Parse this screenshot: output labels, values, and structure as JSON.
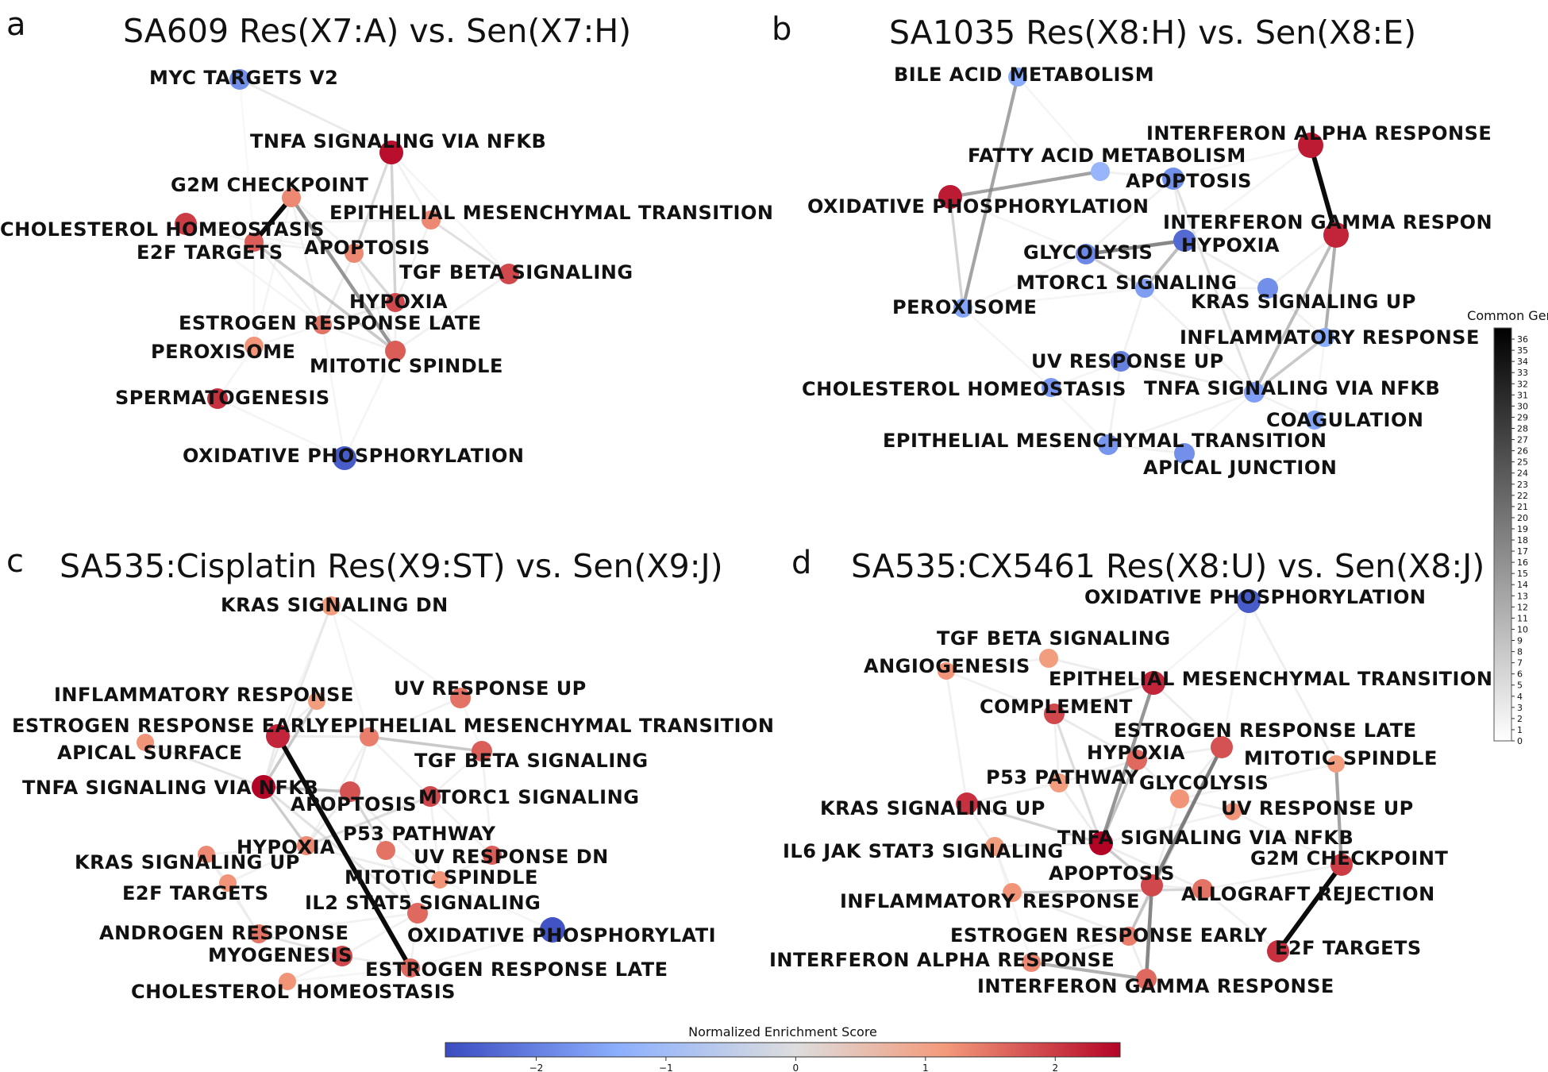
{
  "panels": [
    {
      "letter": "a",
      "title": "SA609 Res(X7:A) vs. Sen(X7:H)",
      "nodes": [
        {
          "label": "MYC TARGETS V2",
          "nes": -1.8
        },
        {
          "label": "TNFA SIGNALING VIA NFKB",
          "nes": 2.4
        },
        {
          "label": "G2M CHECKPOINT",
          "nes": 1.3
        },
        {
          "label": "CHOLESTEROL HOMEOSTASIS",
          "nes": 2.0
        },
        {
          "label": "EPITHELIAL MESENCHYMAL TRANSITION",
          "nes": 1.3
        },
        {
          "label": "E2F TARGETS",
          "nes": 1.7
        },
        {
          "label": "APOPTOSIS",
          "nes": 1.3
        },
        {
          "label": "TGF BETA SIGNALING",
          "nes": 1.9
        },
        {
          "label": "HYPOXIA",
          "nes": 1.9
        },
        {
          "label": "ESTROGEN RESPONSE LATE",
          "nes": 1.5
        },
        {
          "label": "PEROXISOME",
          "nes": 1.2
        },
        {
          "label": "MITOTIC SPINDLE",
          "nes": 1.7
        },
        {
          "label": "SPERMATOGENESIS",
          "nes": 2.1
        },
        {
          "label": "OXIDATIVE PHOSPHORYLATION",
          "nes": -2.5
        }
      ]
    },
    {
      "letter": "b",
      "title": "SA1035 Res(X8:H) vs. Sen(X8:E)",
      "nodes": [
        {
          "label": "BILE ACID METABOLISM",
          "nes": -1.4
        },
        {
          "label": "INTERFERON ALPHA RESPONSE",
          "nes": 2.3
        },
        {
          "label": "FATTY ACID METABOLISM",
          "nes": -1.2
        },
        {
          "label": "APOPTOSIS",
          "nes": -1.8
        },
        {
          "label": "OXIDATIVE PHOSPHORYLATION",
          "nes": 2.3
        },
        {
          "label": "INTERFERON GAMMA RESPON",
          "nes": 2.2
        },
        {
          "label": "HYPOXIA",
          "nes": -2.3
        },
        {
          "label": "GLYCOLYSIS",
          "nes": -1.9
        },
        {
          "label": "MTORC1 SIGNALING",
          "nes": -1.6
        },
        {
          "label": "KRAS SIGNALING UP",
          "nes": -1.8
        },
        {
          "label": "PEROXISOME",
          "nes": -1.5
        },
        {
          "label": "INFLAMMATORY RESPONSE",
          "nes": -1.4
        },
        {
          "label": "UV RESPONSE UP",
          "nes": -2.0
        },
        {
          "label": "CHOLESTEROL HOMEOSTASIS",
          "nes": -1.7
        },
        {
          "label": "TNFA SIGNALING VIA NFKB",
          "nes": -1.6
        },
        {
          "label": "COAGULATION",
          "nes": -1.5
        },
        {
          "label": "EPITHELIAL MESENCHYMAL TRANSITION",
          "nes": -1.7
        },
        {
          "label": "APICAL JUNCTION",
          "nes": -1.8
        }
      ]
    },
    {
      "letter": "c",
      "title": "SA535:Cisplatin Res(X9:ST) vs. Sen(X9:J)",
      "nodes": [
        {
          "label": "KRAS SIGNALING DN",
          "nes": 1.1
        },
        {
          "label": "INFLAMMATORY RESPONSE",
          "nes": 1.1
        },
        {
          "label": "UV RESPONSE UP",
          "nes": 1.5
        },
        {
          "label": "ESTROGEN RESPONSE EARLY",
          "nes": 2.2
        },
        {
          "label": "EPITHELIAL MESENCHYMAL TRANSITION",
          "nes": 1.4
        },
        {
          "label": "APICAL SURFACE",
          "nes": 1.2
        },
        {
          "label": "TGF BETA SIGNALING",
          "nes": 1.7
        },
        {
          "label": "TNFA SIGNALING VIA NFKB",
          "nes": 2.5
        },
        {
          "label": "APOPTOSIS",
          "nes": 1.8
        },
        {
          "label": "MTORC1 SIGNALING",
          "nes": 1.9
        },
        {
          "label": "P53 PATHWAY",
          "nes": 1.5
        },
        {
          "label": "HYPOXIA",
          "nes": 1.3
        },
        {
          "label": "UV RESPONSE DN",
          "nes": 1.7
        },
        {
          "label": "KRAS SIGNALING UP",
          "nes": 1.3
        },
        {
          "label": "MITOTIC SPINDLE",
          "nes": 1.2
        },
        {
          "label": "E2F TARGETS",
          "nes": 1.2
        },
        {
          "label": "IL2 STAT5 SIGNALING",
          "nes": 1.6
        },
        {
          "label": "OXIDATIVE PHOSPHORYLATI",
          "nes": -2.6
        },
        {
          "label": "ANDROGEN RESPONSE",
          "nes": 1.5
        },
        {
          "label": "MYOGENESIS",
          "nes": 1.9
        },
        {
          "label": "ESTROGEN RESPONSE LATE",
          "nes": 1.6
        },
        {
          "label": "CHOLESTEROL HOMEOSTASIS",
          "nes": 1.2
        }
      ]
    },
    {
      "letter": "d",
      "title": "SA535:CX5461 Res(X8:U) vs. Sen(X8:J)",
      "nodes": [
        {
          "label": "OXIDATIVE PHOSPHORYLATION",
          "nes": -2.5
        },
        {
          "label": "TGF BETA SIGNALING",
          "nes": 1.1
        },
        {
          "label": "ANGIOGENESIS",
          "nes": 1.2
        },
        {
          "label": "EPITHELIAL MESENCHYMAL TRANSITION",
          "nes": 2.2
        },
        {
          "label": "COMPLEMENT",
          "nes": 1.9
        },
        {
          "label": "ESTROGEN RESPONSE LATE",
          "nes": 1.8
        },
        {
          "label": "HYPOXIA",
          "nes": 1.6
        },
        {
          "label": "MITOTIC SPINDLE",
          "nes": 1.1
        },
        {
          "label": "P53 PATHWAY",
          "nes": 1.1
        },
        {
          "label": "GLYCOLYSIS",
          "nes": 1.2
        },
        {
          "label": "KRAS SIGNALING UP",
          "nes": 2.1
        },
        {
          "label": "UV RESPONSE UP",
          "nes": 1.2
        },
        {
          "label": "IL6 JAK STAT3 SIGNALING",
          "nes": 1.1
        },
        {
          "label": "TNFA SIGNALING VIA NFKB",
          "nes": 2.6
        },
        {
          "label": "G2M CHECKPOINT",
          "nes": 2.0
        },
        {
          "label": "APOPTOSIS",
          "nes": 1.9
        },
        {
          "label": "ALLOGRAFT REJECTION",
          "nes": 1.5
        },
        {
          "label": "INFLAMMATORY RESPONSE",
          "nes": 1.2
        },
        {
          "label": "ESTROGEN RESPONSE EARLY",
          "nes": 1.4
        },
        {
          "label": "E2F TARGETS",
          "nes": 2.1
        },
        {
          "label": "INTERFERON ALPHA RESPONSE",
          "nes": 1.3
        },
        {
          "label": "INTERFERON GAMMA RESPONSE",
          "nes": 1.6
        }
      ]
    }
  ],
  "edges": [
    {
      "panel": 0,
      "a": "G2M CHECKPOINT",
      "b": "E2F TARGETS",
      "genes": 36
    },
    {
      "panel": 0,
      "a": "G2M CHECKPOINT",
      "b": "MITOTIC SPINDLE",
      "genes": 20
    },
    {
      "panel": 0,
      "a": "TNFA SIGNALING VIA NFKB",
      "b": "APOPTOSIS",
      "genes": 8
    },
    {
      "panel": 0,
      "a": "TNFA SIGNALING VIA NFKB",
      "b": "HYPOXIA",
      "genes": 10
    },
    {
      "panel": 0,
      "a": "E2F TARGETS",
      "b": "MITOTIC SPINDLE",
      "genes": 12
    },
    {
      "panel": 0,
      "a": "APOPTOSIS",
      "b": "HYPOXIA",
      "genes": 9
    },
    {
      "panel": 0,
      "a": "EPITHELIAL MESENCHYMAL TRANSITION",
      "b": "TGF BETA SIGNALING",
      "genes": 6
    },
    {
      "panel": 0,
      "a": "ESTROGEN RESPONSE LATE",
      "b": "HYPOXIA",
      "genes": 5
    },
    {
      "panel": 0,
      "a": "CHOLESTEROL HOMEOSTASIS",
      "b": "E2F TARGETS",
      "genes": 4
    },
    {
      "panel": 0,
      "a": "MYC TARGETS V2",
      "b": "TNFA SIGNALING VIA NFKB",
      "genes": 4
    },
    {
      "panel": 1,
      "a": "INTERFERON ALPHA RESPONSE",
      "b": "INTERFERON GAMMA RESPON",
      "genes": 36
    },
    {
      "panel": 1,
      "a": "BILE ACID METABOLISM",
      "b": "PEROXISOME",
      "genes": 18
    },
    {
      "panel": 1,
      "a": "OXIDATIVE PHOSPHORYLATION",
      "b": "FATTY ACID METABOLISM",
      "genes": 18
    },
    {
      "panel": 1,
      "a": "HYPOXIA",
      "b": "GLYCOLYSIS",
      "genes": 22
    },
    {
      "panel": 1,
      "a": "INTERFERON GAMMA RESPON",
      "b": "INFLAMMATORY RESPONSE",
      "genes": 16
    },
    {
      "panel": 1,
      "a": "INTERFERON GAMMA RESPON",
      "b": "TNFA SIGNALING VIA NFKB",
      "genes": 14
    },
    {
      "panel": 1,
      "a": "MTORC1 SIGNALING",
      "b": "HYPOXIA",
      "genes": 14
    },
    {
      "panel": 1,
      "a": "TNFA SIGNALING VIA NFKB",
      "b": "INFLAMMATORY RESPONSE",
      "genes": 12
    },
    {
      "panel": 1,
      "a": "GLYCOLYSIS",
      "b": "MTORC1 SIGNALING",
      "genes": 10
    },
    {
      "panel": 1,
      "a": "OXIDATIVE PHOSPHORYLATION",
      "b": "PEROXISOME",
      "genes": 9
    },
    {
      "panel": 1,
      "a": "APOPTOSIS",
      "b": "TNFA SIGNALING VIA NFKB",
      "genes": 7
    },
    {
      "panel": 2,
      "a": "ESTROGEN RESPONSE EARLY",
      "b": "ESTROGEN RESPONSE LATE",
      "genes": 36
    },
    {
      "panel": 2,
      "a": "TNFA SIGNALING VIA NFKB",
      "b": "INFLAMMATORY RESPONSE",
      "genes": 12
    },
    {
      "panel": 2,
      "a": "TNFA SIGNALING VIA NFKB",
      "b": "APOPTOSIS",
      "genes": 12
    },
    {
      "panel": 2,
      "a": "HYPOXIA",
      "b": "MTORC1 SIGNALING",
      "genes": 8
    },
    {
      "panel": 2,
      "a": "EPITHELIAL MESENCHYMAL TRANSITION",
      "b": "TGF BETA SIGNALING",
      "genes": 12
    },
    {
      "panel": 2,
      "a": "TNFA SIGNALING VIA NFKB",
      "b": "HYPOXIA",
      "genes": 10
    },
    {
      "panel": 2,
      "a": "APICAL SURFACE",
      "b": "TNFA SIGNALING VIA NFKB",
      "genes": 5
    },
    {
      "panel": 2,
      "a": "P53 PATHWAY",
      "b": "APOPTOSIS",
      "genes": 8
    },
    {
      "panel": 2,
      "a": "IL2 STAT5 SIGNALING",
      "b": "TNFA SIGNALING VIA NFKB",
      "genes": 7
    },
    {
      "panel": 2,
      "a": "KRAS SIGNALING DN",
      "b": "TNFA SIGNALING VIA NFKB",
      "genes": 4
    },
    {
      "panel": 2,
      "a": "MYOGENESIS",
      "b": "ANDROGEN RESPONSE",
      "genes": 5
    },
    {
      "panel": 3,
      "a": "G2M CHECKPOINT",
      "b": "E2F TARGETS",
      "genes": 36
    },
    {
      "panel": 3,
      "a": "TNFA SIGNALING VIA NFKB",
      "b": "EPITHELIAL MESENCHYMAL TRANSITION",
      "genes": 20
    },
    {
      "panel": 3,
      "a": "APOPTOSIS",
      "b": "ESTROGEN RESPONSE LATE",
      "genes": 22
    },
    {
      "panel": 3,
      "a": "APOPTOSIS",
      "b": "INTERFERON GAMMA RESPONSE",
      "genes": 22
    },
    {
      "panel": 3,
      "a": "MITOTIC SPINDLE",
      "b": "G2M CHECKPOINT",
      "genes": 18
    },
    {
      "panel": 3,
      "a": "INTERFERON ALPHA RESPONSE",
      "b": "INTERFERON GAMMA RESPONSE",
      "genes": 16
    },
    {
      "panel": 3,
      "a": "TNFA SIGNALING VIA NFKB",
      "b": "HYPOXIA",
      "genes": 12
    },
    {
      "panel": 3,
      "a": "ESTROGEN RESPONSE EARLY",
      "b": "ESTROGEN RESPONSE LATE",
      "genes": 12
    },
    {
      "panel": 3,
      "a": "TNFA SIGNALING VIA NFKB",
      "b": "KRAS SIGNALING UP",
      "genes": 10
    },
    {
      "panel": 3,
      "a": "TNFA SIGNALING VIA NFKB",
      "b": "APOPTOSIS",
      "genes": 10
    },
    {
      "panel": 3,
      "a": "TNFA SIGNALING VIA NFKB",
      "b": "COMPLEMENT",
      "genes": 8
    },
    {
      "panel": 3,
      "a": "ALLOGRAFT REJECTION",
      "b": "INFLAMMATORY RESPONSE",
      "genes": 8
    },
    {
      "panel": 3,
      "a": "OXIDATIVE PHOSPHORYLATION",
      "b": "MITOTIC SPINDLE",
      "genes": 4
    }
  ],
  "colorbar_nes": {
    "title": "Normalized Enrichment Score",
    "min": -2.7,
    "max": 2.5,
    "ticks": [
      -2,
      -1,
      0,
      1,
      2
    ],
    "tick_labels": [
      "−2",
      "−1",
      "0",
      "1",
      "2"
    ],
    "colors": [
      "#3b4cc0",
      "#8db0fe",
      "#dddddd",
      "#f49a7b",
      "#b40426"
    ]
  },
  "colorbar_genes": {
    "title": "Common Genes",
    "min": 0,
    "max": 37,
    "ticks": [
      0,
      1,
      2,
      3,
      4,
      5,
      6,
      7,
      8,
      9,
      10,
      11,
      12,
      13,
      14,
      15,
      16,
      17,
      18,
      19,
      20,
      21,
      22,
      23,
      24,
      25,
      26,
      27,
      28,
      29,
      30,
      31,
      32,
      33,
      34,
      35,
      36
    ],
    "colors": [
      "#ffffff",
      "#000000"
    ]
  }
}
